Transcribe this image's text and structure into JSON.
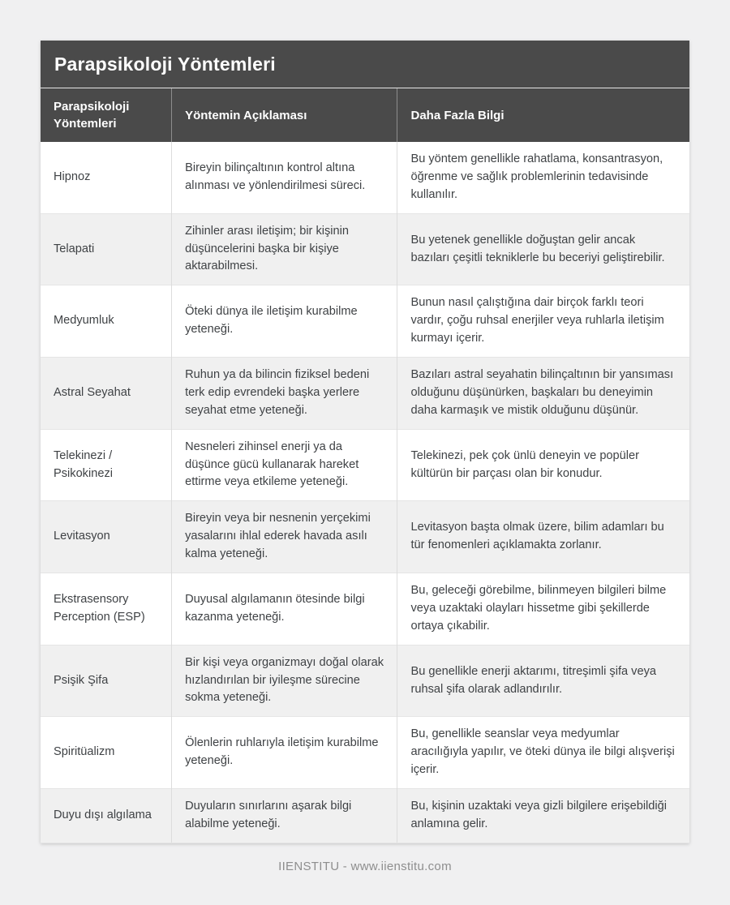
{
  "page": {
    "title": "Parapsikoloji Yöntemleri"
  },
  "table": {
    "columns": [
      "Parapsikoloji Yöntemleri",
      "Yöntemin Açıklaması",
      "Daha Fazla Bilgi"
    ],
    "rows": [
      {
        "method": "Hipnoz",
        "description": "Bireyin bilinçaltının kontrol altına alınması ve yönlendirilmesi süreci.",
        "more_info": "Bu yöntem genellikle rahatlama, konsantrasyon, öğrenme ve sağlık problemlerinin tedavisinde kullanılır."
      },
      {
        "method": "Telapati",
        "description": "Zihinler arası iletişim; bir kişinin düşüncelerini başka bir kişiye aktarabilmesi.",
        "more_info": "Bu yetenek genellikle doğuştan gelir ancak bazıları çeşitli tekniklerle bu beceriyi geliştirebilir."
      },
      {
        "method": "Medyumluk",
        "description": "Öteki dünya ile iletişim kurabilme yeteneği.",
        "more_info": "Bunun nasıl çalıştığına dair birçok farklı teori vardır, çoğu ruhsal enerjiler veya ruhlarla iletişim kurmayı içerir."
      },
      {
        "method": "Astral Seyahat",
        "description": "Ruhun ya da bilincin fiziksel bedeni terk edip evrendeki başka yerlere seyahat etme yeteneği.",
        "more_info": "Bazıları astral seyahatin bilinçaltının bir yansıması olduğunu düşünürken, başkaları bu deneyimin daha karmaşık ve mistik olduğunu düşünür."
      },
      {
        "method": "Telekinezi / Psikokinezi",
        "description": "Nesneleri zihinsel enerji ya da düşünce gücü kullanarak hareket ettirme veya etkileme yeteneği.",
        "more_info": "Telekinezi, pek çok ünlü deneyin ve popüler kültürün bir parçası olan bir konudur."
      },
      {
        "method": "Levitasyon",
        "description": "Bireyin veya bir nesnenin yerçekimi yasalarını ihlal ederek havada asılı kalma yeteneği.",
        "more_info": "Levitasyon başta olmak üzere, bilim adamları bu tür fenomenleri açıklamakta zorlanır."
      },
      {
        "method": "Ekstrasensory Perception (ESP)",
        "description": "Duyusal algılamanın ötesinde bilgi kazanma yeteneği.",
        "more_info": "Bu, geleceği görebilme, bilinmeyen bilgileri bilme veya uzaktaki olayları hissetme gibi şekillerde ortaya çıkabilir."
      },
      {
        "method": "Psişik Şifa",
        "description": "Bir kişi veya organizmayı doğal olarak hızlandırılan bir iyileşme sürecine sokma yeteneği.",
        "more_info": "Bu genellikle enerji aktarımı, titreşimli şifa veya ruhsal şifa olarak adlandırılır."
      },
      {
        "method": "Spiritüalizm",
        "description": "Ölenlerin ruhlarıyla iletişim kurabilme yeteneği.",
        "more_info": "Bu, genellikle seanslar veya medyumlar aracılığıyla yapılır, ve öteki dünya ile bilgi alışverişi içerir."
      },
      {
        "method": "Duyu dışı algılama",
        "description": "Duyuların sınırlarını aşarak bilgi alabilme yeteneği.",
        "more_info": "Bu, kişinin uzaktaki veya gizli bilgilere erişebildiği anlamına gelir."
      }
    ]
  },
  "footer": {
    "text": "IIENSTITU - www.iienstitu.com"
  },
  "colors": {
    "header_bg": "#4a4a4a",
    "header_text": "#ffffff",
    "row_alt_bg": "#f0f0f0",
    "body_text": "#3f4245",
    "page_bg": "#f0f0f1",
    "border": "#dcdcdc",
    "footer_text": "#8e8e8e"
  }
}
